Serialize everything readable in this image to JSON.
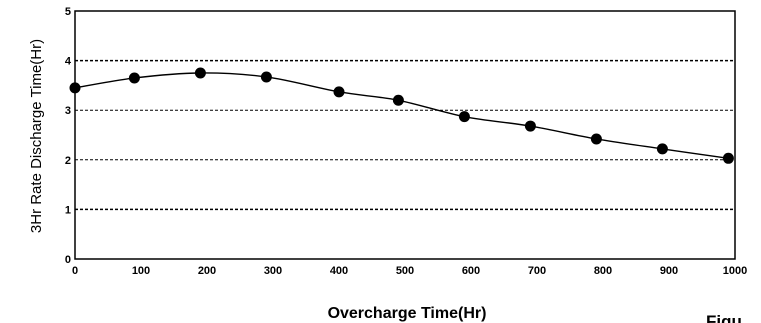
{
  "chart_data": {
    "type": "line",
    "xlabel": "Overcharge Time(Hr)",
    "ylabel": "3Hr Rate Discharge Time(Hr)",
    "xlim": [
      0,
      1000
    ],
    "ylim": [
      0,
      5
    ],
    "xticks": [
      "0",
      "100",
      "200",
      "300",
      "400",
      "500",
      "600",
      "700",
      "800",
      "900",
      "1000"
    ],
    "yticks": [
      "0",
      "1",
      "2",
      "3",
      "4",
      "5"
    ],
    "grid": "horizontal dashed at 1, 2, 3, 4",
    "series": [
      {
        "x": [
          0,
          90,
          190,
          290,
          400,
          490,
          590,
          690,
          790,
          890,
          990
        ],
        "y": [
          3.45,
          3.65,
          3.75,
          3.67,
          3.37,
          3.2,
          2.87,
          2.68,
          2.42,
          2.22,
          2.03
        ],
        "color": "#000000",
        "marker": "filled-circle"
      }
    ]
  },
  "figure_caption_fragment": "Figu"
}
